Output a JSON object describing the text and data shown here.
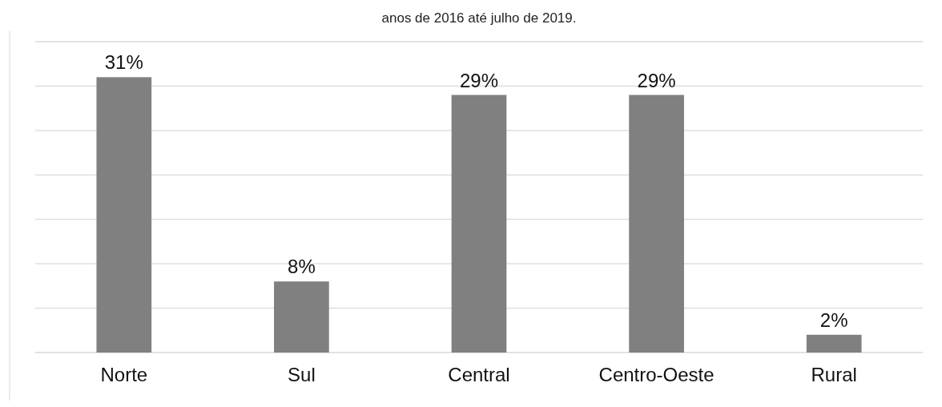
{
  "chart_data": {
    "type": "bar",
    "title": "anos de 2016 até julho de 2019.",
    "categories": [
      "Norte",
      "Sul",
      "Central",
      "Centro-Oeste",
      "Rural"
    ],
    "values": [
      31,
      8,
      29,
      29,
      2
    ],
    "value_labels": [
      "31%",
      "8%",
      "29%",
      "29%",
      "2%"
    ],
    "color": "#808080",
    "ylim": [
      0,
      35
    ],
    "yticks": [
      {
        "value": 0,
        "label": null
      },
      {
        "value": 5,
        "label": null
      },
      {
        "value": 10,
        "label": null
      },
      {
        "value": 15,
        "label": null
      },
      {
        "value": 20,
        "label": null
      },
      {
        "value": 25,
        "label": null
      },
      {
        "value": 30,
        "label": null
      },
      {
        "value": 35,
        "label": null
      }
    ],
    "tick_labels": "x",
    "grid": "y"
  }
}
